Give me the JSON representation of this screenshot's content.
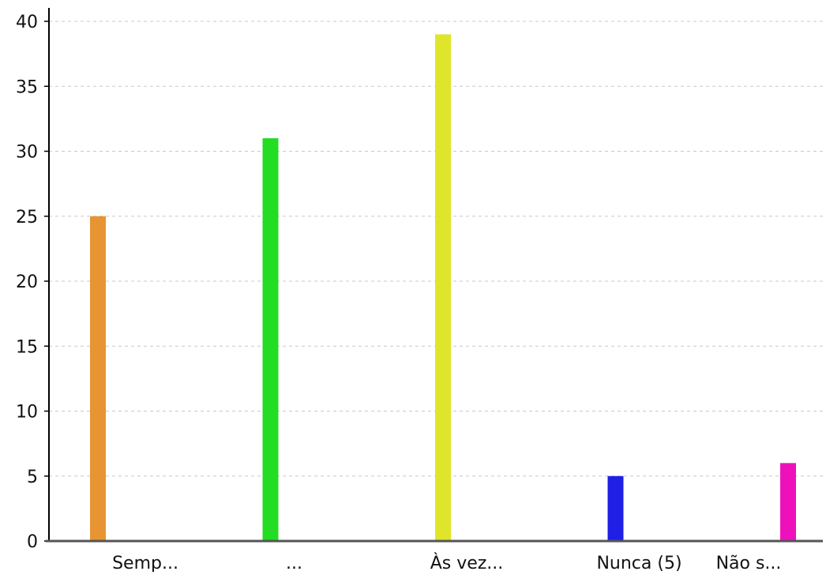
{
  "chart_data": {
    "type": "bar",
    "categories": [
      "Semp...",
      "...",
      "Às vez...",
      "Nunca (5)",
      "Não s..."
    ],
    "values": [
      25,
      31,
      39,
      5,
      6
    ],
    "colors": [
      "#e69532",
      "#22dd22",
      "#dfe52a",
      "#1f1fe6",
      "#ee11bb"
    ],
    "ylim": [
      0,
      40
    ],
    "yticks": [
      0,
      5,
      10,
      15,
      20,
      25,
      30,
      35,
      40
    ],
    "grid": true
  }
}
